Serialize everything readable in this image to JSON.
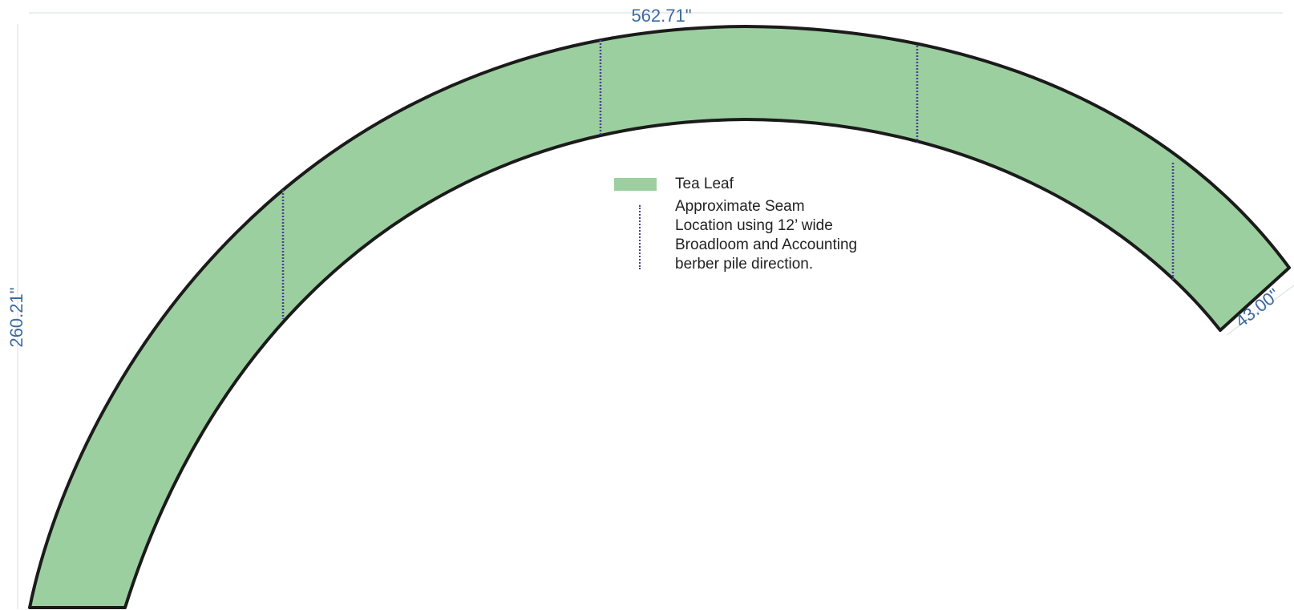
{
  "drawing": {
    "shape_name": "curved-carpet-band",
    "fill_color": "#9ccf9f",
    "outline_color": "#1b1b1b",
    "seam_color": "#4b3f93",
    "dimension_color": "#3d6aa0"
  },
  "dimensions": {
    "overall_width": "562.71\"",
    "overall_height": "260.21\"",
    "band_width": "43.00\""
  },
  "legend": {
    "material_label": "Tea Leaf",
    "seam_label_lines": [
      "Approximate Seam",
      "Location using 12’ wide",
      "Broadloom and Accounting",
      "berber pile direction."
    ]
  }
}
